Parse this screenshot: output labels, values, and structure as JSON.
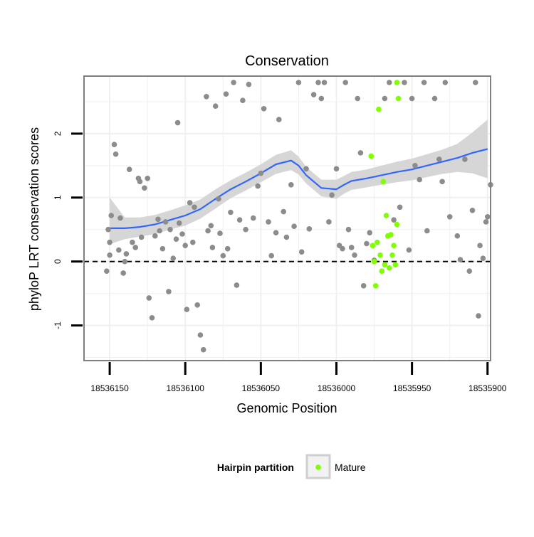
{
  "chart_data": {
    "type": "scatter",
    "title": "Conservation",
    "xlabel": "Genomic Position",
    "ylabel": "phyloP LRT conservation scores",
    "x_reversed": true,
    "xlim": [
      18536167,
      18535898
    ],
    "ylim": [
      -1.55,
      2.9
    ],
    "x_ticks": [
      18536150,
      18536100,
      18536050,
      18536000,
      18535950,
      18535900
    ],
    "x_tick_labels": [
      "18536150",
      "18536100",
      "18536050",
      "18536000",
      "18535950",
      "18535900"
    ],
    "y_ticks": [
      -1,
      0,
      1,
      2
    ],
    "y_tick_labels": [
      "-1",
      "0",
      "1",
      "2"
    ],
    "reference_line": {
      "y": 0,
      "style": "dashed"
    },
    "grid": true,
    "legend": {
      "title": "Hairpin partition",
      "position": "bottom",
      "entries": [
        "Mature"
      ]
    },
    "colors": {
      "background_points": "#8c8c8c",
      "mature_points": "#7fff00",
      "smooth_line": "#3366ff",
      "confidence_band": "#d4d4d4",
      "panel_border": "#7f7f7f",
      "grid": "#f0f0f0"
    },
    "series": [
      {
        "kind": "points",
        "x": [
          18536152,
          18536151,
          18536150,
          18536150,
          18536149,
          18536147,
          18536146,
          18536144,
          18536143,
          18536141,
          18536140,
          18536139,
          18536137,
          18536135,
          18536133,
          18536131,
          18536130,
          18536129,
          18536127,
          18536125,
          18536124,
          18536122,
          18536120,
          18536118,
          18536117,
          18536115,
          18536113,
          18536111,
          18536110,
          18536108,
          18536106,
          18536105,
          18536104,
          18536102,
          18536100,
          18536099,
          18536097,
          18536095,
          18536094,
          18536092,
          18536090,
          18536088,
          18536086,
          18536085,
          18536083,
          18536082,
          18536080,
          18536078,
          18536077,
          18536075,
          18536073,
          18536072,
          18536070,
          18536068,
          18536066,
          18536064,
          18536062,
          18536060,
          18536058,
          18536055,
          18536052,
          18536050,
          18536048,
          18536045,
          18536043,
          18536040,
          18536038,
          18536035,
          18536033,
          18536030,
          18536028,
          18536025,
          18536023,
          18536020,
          18536018,
          18536015,
          18536012,
          18536010,
          18536008,
          18536005,
          18536003,
          18536000,
          18535998,
          18535996,
          18535994,
          18535992,
          18535990,
          18535988,
          18535986,
          18535984,
          18535982,
          18535980,
          18535978,
          18535975,
          18535968,
          18535965,
          18535962,
          18535958,
          18535955,
          18535952,
          18535950,
          18535948,
          18535945,
          18535942,
          18535940,
          18535935,
          18535932,
          18535930,
          18535928,
          18535925,
          18535920,
          18535918,
          18535915,
          18535912,
          18535910,
          18535908,
          18535906,
          18535905,
          18535903,
          18535901,
          18535900,
          18535898
        ],
        "y": [
          -0.15,
          0.5,
          0.3,
          0.1,
          0.72,
          1.83,
          1.68,
          0.18,
          0.68,
          -0.18,
          0.0,
          0.12,
          1.44,
          0.3,
          0.22,
          1.3,
          1.25,
          0.38,
          1.15,
          1.3,
          -0.57,
          -0.88,
          0.4,
          0.66,
          0.48,
          0.2,
          0.62,
          -0.47,
          0.5,
          0.05,
          0.35,
          2.17,
          0.6,
          0.43,
          0.25,
          -0.75,
          0.92,
          0.3,
          0.85,
          -0.68,
          -1.15,
          -1.38,
          2.58,
          0.48,
          0.56,
          0.22,
          2.43,
          0.98,
          0.44,
          0.09,
          2.62,
          0.2,
          0.77,
          2.8,
          -0.37,
          0.65,
          2.52,
          0.5,
          2.77,
          0.68,
          1.18,
          1.38,
          2.39,
          0.62,
          0.09,
          0.45,
          2.22,
          0.78,
          0.38,
          1.2,
          0.55,
          2.8,
          0.15,
          1.45,
          0.51,
          2.61,
          2.8,
          2.55,
          2.8,
          0.62,
          1.04,
          1.45,
          0.25,
          0.2,
          2.8,
          0.5,
          0.22,
          0.1,
          2.55,
          1.7,
          -0.38,
          0.28,
          0.45,
          0.02,
          2.55,
          2.8,
          0.65,
          0.85,
          2.8,
          0.18,
          2.55,
          1.5,
          1.28,
          2.8,
          0.48,
          2.55,
          1.6,
          1.25,
          2.8,
          0.7,
          0.4,
          0.03,
          1.6,
          -0.15,
          0.8,
          2.8,
          -0.85,
          0.25,
          0.05,
          0.62,
          0.7,
          1.2
        ],
        "color": "#8c8c8c"
      },
      {
        "kind": "points",
        "name": "Mature",
        "x": [
          18535977,
          18535976,
          18535975,
          18535974,
          18535973,
          18535972,
          18535971,
          18535970,
          18535969,
          18535968,
          18535967,
          18535966,
          18535965,
          18535964,
          18535963,
          18535962,
          18535961,
          18535960,
          18535960,
          18535959
        ],
        "y": [
          1.65,
          0.25,
          0.0,
          -0.38,
          0.3,
          2.38,
          0.1,
          -0.15,
          1.25,
          -0.05,
          0.72,
          0.4,
          -0.1,
          0.42,
          0.1,
          0.25,
          -0.05,
          0.58,
          2.8,
          2.55
        ],
        "color": "#7fff00"
      },
      {
        "kind": "smooth",
        "x": [
          18536150,
          18536140,
          18536130,
          18536120,
          18536110,
          18536100,
          18536090,
          18536080,
          18536070,
          18536060,
          18536050,
          18536040,
          18536030,
          18536025,
          18536020,
          18536010,
          18536000,
          18535995,
          18535990,
          18535980,
          18535970,
          18535960,
          18535950,
          18535940,
          18535930,
          18535920,
          18535910,
          18535900
        ],
        "y": [
          0.52,
          0.52,
          0.54,
          0.58,
          0.65,
          0.72,
          0.82,
          0.98,
          1.13,
          1.25,
          1.38,
          1.52,
          1.58,
          1.5,
          1.35,
          1.15,
          1.13,
          1.2,
          1.26,
          1.3,
          1.35,
          1.4,
          1.44,
          1.5,
          1.56,
          1.62,
          1.7,
          1.76
        ],
        "ymin": [
          0.27,
          0.35,
          0.39,
          0.43,
          0.5,
          0.56,
          0.67,
          0.83,
          0.99,
          1.11,
          1.24,
          1.37,
          1.43,
          1.36,
          1.22,
          1.02,
          0.98,
          1.06,
          1.12,
          1.16,
          1.2,
          1.24,
          1.27,
          1.32,
          1.37,
          1.4,
          1.38,
          1.3
        ],
        "ymax": [
          1.0,
          0.69,
          0.69,
          0.73,
          0.8,
          0.88,
          0.97,
          1.13,
          1.27,
          1.39,
          1.52,
          1.67,
          1.74,
          1.64,
          1.48,
          1.28,
          1.28,
          1.34,
          1.4,
          1.44,
          1.5,
          1.56,
          1.61,
          1.68,
          1.75,
          1.84,
          2.02,
          2.22
        ],
        "color": "#3366ff"
      }
    ]
  }
}
